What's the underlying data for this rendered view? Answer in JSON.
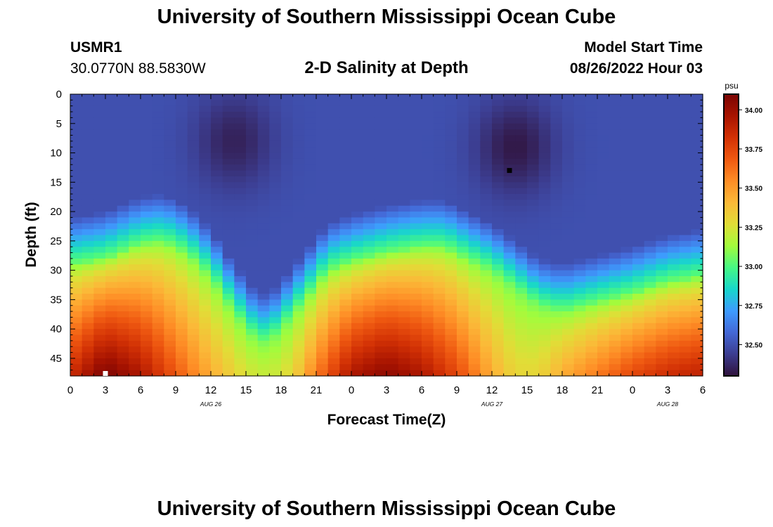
{
  "header": {
    "title": "University of Southern Mississippi Ocean Cube",
    "station_id": "USMR1",
    "station_coords": "30.0770N  88.5830W",
    "subtitle": "2-D Salinity at Depth",
    "model_label": "Model Start Time",
    "model_value": "08/26/2022 Hour 03"
  },
  "footer": {
    "title": "University of Southern Mississippi Ocean Cube"
  },
  "colors": {
    "colormap": [
      "#30123b",
      "#3c3d90",
      "#4468d6",
      "#3e9bfe",
      "#18d6cb",
      "#46f884",
      "#a2fc3c",
      "#e1dd37",
      "#fbb938",
      "#fe8d26",
      "#ef5911",
      "#d23105",
      "#a81401",
      "#7a0403"
    ]
  },
  "chart_data": {
    "type": "heatmap",
    "title": "2-D Salinity at Depth",
    "xlabel": "Forecast Time(Z)",
    "ylabel": "Depth (ft)",
    "x_hours_from_aug26_00z": [
      0,
      54
    ],
    "xlim": [
      0,
      54
    ],
    "x_ticks": [
      0,
      3,
      6,
      9,
      12,
      15,
      18,
      21,
      24,
      27,
      30,
      33,
      36,
      39,
      42,
      45,
      48,
      51,
      54
    ],
    "x_tick_labels": [
      "0",
      "3",
      "6",
      "9",
      "12",
      "15",
      "18",
      "21",
      "0",
      "3",
      "6",
      "9",
      "12",
      "15",
      "18",
      "21",
      "0",
      "3",
      "6"
    ],
    "date_labels": [
      {
        "hour": 12,
        "label": "AUG 26"
      },
      {
        "hour": 36,
        "label": "AUG 27"
      },
      {
        "hour": 51,
        "label": "AUG 28"
      }
    ],
    "ylim": [
      0,
      48
    ],
    "y_ticks": [
      0,
      5,
      10,
      15,
      20,
      25,
      30,
      35,
      40,
      45
    ],
    "colorbar": {
      "unit": "psu",
      "vmin": 32.3,
      "vmax": 34.1,
      "ticks": [
        32.5,
        32.75,
        33.0,
        33.25,
        33.5,
        33.75,
        34.0
      ],
      "tick_labels": [
        "32.50",
        "32.75",
        "33.00",
        "33.25",
        "33.50",
        "33.75",
        "34.00"
      ]
    },
    "grid_resolution": {
      "time_step_hours": 1,
      "depth_step_ft": 1
    },
    "low_salinity_cores": [
      {
        "hour": 14,
        "depth_ft": 8,
        "value": 32.35
      },
      {
        "hour": 38,
        "depth_ft": 9,
        "value": 32.32
      }
    ],
    "interface_depth_ft": [
      {
        "hour": 0,
        "depth": 29
      },
      {
        "hour": 3,
        "depth": 28
      },
      {
        "hour": 6,
        "depth": 25.5
      },
      {
        "hour": 8,
        "depth": 25
      },
      {
        "hour": 10,
        "depth": 27
      },
      {
        "hour": 12,
        "depth": 31
      },
      {
        "hour": 14,
        "depth": 37
      },
      {
        "hour": 16,
        "depth": 42
      },
      {
        "hour": 17,
        "depth": 42
      },
      {
        "hour": 18,
        "depth": 40
      },
      {
        "hour": 20,
        "depth": 35
      },
      {
        "hour": 22,
        "depth": 30
      },
      {
        "hour": 24,
        "depth": 28.5
      },
      {
        "hour": 27,
        "depth": 27
      },
      {
        "hour": 30,
        "depth": 26
      },
      {
        "hour": 32,
        "depth": 26
      },
      {
        "hour": 34,
        "depth": 28
      },
      {
        "hour": 36,
        "depth": 30
      },
      {
        "hour": 38,
        "depth": 33
      },
      {
        "hour": 40,
        "depth": 36
      },
      {
        "hour": 42,
        "depth": 37
      },
      {
        "hour": 44,
        "depth": 36
      },
      {
        "hour": 46,
        "depth": 35
      },
      {
        "hour": 48,
        "depth": 34
      },
      {
        "hour": 51,
        "depth": 32
      },
      {
        "hour": 54,
        "depth": 31
      }
    ],
    "bottom_max_salinity": [
      {
        "hour": 0,
        "value": 33.85
      },
      {
        "hour": 3,
        "value": 34.1
      },
      {
        "hour": 6,
        "value": 33.95
      },
      {
        "hour": 9,
        "value": 33.7
      },
      {
        "hour": 12,
        "value": 33.45
      },
      {
        "hour": 15,
        "value": 33.25
      },
      {
        "hour": 17,
        "value": 33.2
      },
      {
        "hour": 19,
        "value": 33.3
      },
      {
        "hour": 21,
        "value": 33.6
      },
      {
        "hour": 24,
        "value": 33.95
      },
      {
        "hour": 27,
        "value": 34.05
      },
      {
        "hour": 30,
        "value": 33.95
      },
      {
        "hour": 33,
        "value": 33.75
      },
      {
        "hour": 36,
        "value": 33.45
      },
      {
        "hour": 38,
        "value": 33.3
      },
      {
        "hour": 40,
        "value": 33.3
      },
      {
        "hour": 42,
        "value": 33.45
      },
      {
        "hour": 45,
        "value": 33.6
      },
      {
        "hour": 48,
        "value": 33.75
      },
      {
        "hour": 51,
        "value": 33.85
      },
      {
        "hour": 54,
        "value": 33.9
      }
    ],
    "markers": [
      {
        "type": "minimum",
        "hour": 37.5,
        "depth_ft": 13,
        "color": "#000000"
      },
      {
        "type": "maximum",
        "hour": 3,
        "depth_ft": 48,
        "color": "#ffffff"
      }
    ]
  }
}
